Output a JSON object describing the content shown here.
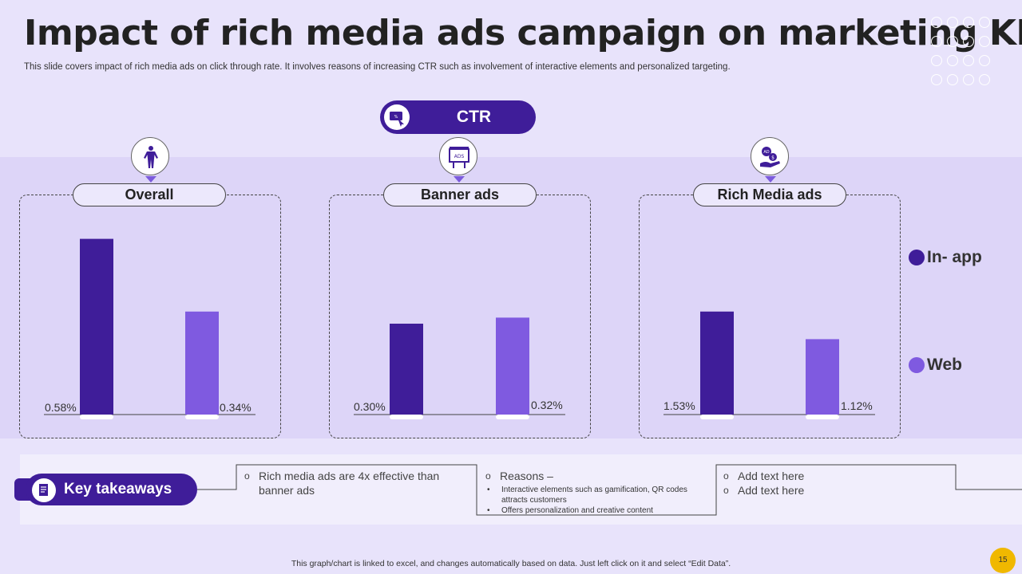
{
  "title": "Impact of rich media ads campaign on marketing KPI",
  "subtitle": "This slide covers impact of rich media ads on click through rate.  It involves reasons of increasing CTR such as involvement of interactive elements and personalized targeting.",
  "ctr_label": "CTR",
  "colors": {
    "in_app": "#3f1d99",
    "web": "#7f5ae0"
  },
  "legend": {
    "in_app": "In- app",
    "web": "Web"
  },
  "chart_data": [
    {
      "type": "bar",
      "title": "Overall",
      "icon": "person-icon",
      "categories": [
        "In- app",
        "Web"
      ],
      "values": [
        0.58,
        0.34
      ],
      "labels": [
        "0.58%",
        "0.34%"
      ],
      "ylim": [
        0,
        0.6
      ]
    },
    {
      "type": "bar",
      "title": "Banner ads",
      "icon": "billboard-icon",
      "categories": [
        "In- app",
        "Web"
      ],
      "values": [
        0.3,
        0.32
      ],
      "labels": [
        "0.30%",
        "0.32%"
      ],
      "ylim": [
        0,
        0.6
      ]
    },
    {
      "type": "bar",
      "title": "Rich Media ads",
      "icon": "ad-money-icon",
      "categories": [
        "In- app",
        "Web"
      ],
      "values": [
        1.53,
        1.12
      ],
      "labels": [
        "1.53%",
        "1.12%"
      ],
      "ylim": [
        0,
        2.7
      ]
    }
  ],
  "key_takeaways": {
    "label": "Key takeaways",
    "col1": {
      "text": "Rich media ads are 4x effective than banner ads"
    },
    "col2": {
      "heading": "Reasons –",
      "bullets": [
        "Interactive elements  such as gamification, QR codes attracts customers",
        "Offers personalization and creative content"
      ]
    },
    "col3": {
      "items": [
        "Add text here",
        "Add text here"
      ]
    }
  },
  "footer": "This graph/chart is linked to excel, and changes automatically based on data.  Just left click on it and select “Edit Data”.",
  "page_number": "15"
}
